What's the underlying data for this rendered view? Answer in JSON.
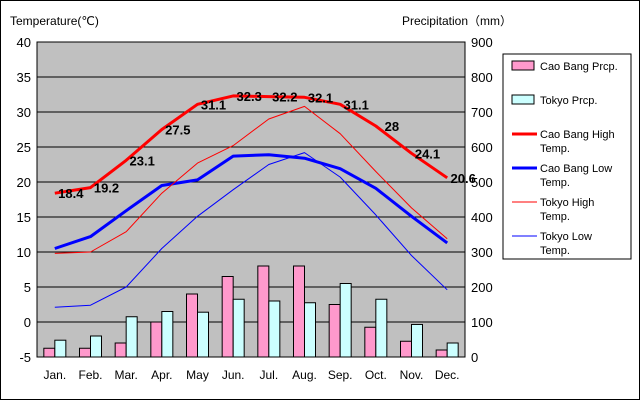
{
  "chart_data": {
    "type": "bar+line",
    "categories": [
      "Jan.",
      "Feb.",
      "Mar.",
      "Apr.",
      "May",
      "Jun.",
      "Jul.",
      "Aug.",
      "Sep.",
      "Oct.",
      "Nov.",
      "Dec."
    ],
    "left_axis": {
      "label": "Temperature(℃)",
      "min": -5,
      "max": 40,
      "step": 5
    },
    "right_axis": {
      "label": "Precipitation（mm）",
      "min": 0,
      "max": 900,
      "step": 100
    },
    "plot_background": "#c0c0c0",
    "bar_series": [
      {
        "name": "Cao Bang Prcp.",
        "color": "#ff99cc",
        "values": [
          25,
          25,
          40,
          100,
          180,
          230,
          260,
          260,
          150,
          85,
          45,
          20
        ]
      },
      {
        "name": "Tokyo Prcp.",
        "color": "#ccffff",
        "values": [
          48,
          60,
          115,
          130,
          128,
          165,
          160,
          155,
          210,
          165,
          93,
          40
        ]
      }
    ],
    "line_series": [
      {
        "name": "Cao Bang High Temp.",
        "color": "#ff0000",
        "width": 3,
        "values": [
          18.4,
          19.2,
          23.1,
          27.5,
          31.1,
          32.3,
          32.2,
          32.1,
          31.1,
          28,
          24.1,
          20.6
        ],
        "labels": [
          "18.4",
          "19.2",
          "23.1",
          "27.5",
          "31.1",
          "32.3",
          "32.2",
          "32.1",
          "31.1",
          "28",
          "24.1",
          "20.6"
        ]
      },
      {
        "name": "Cao Bang Low Temp.",
        "color": "#0000ff",
        "width": 3,
        "values": [
          10.5,
          12.2,
          15.9,
          19.5,
          20.3,
          23.7,
          23.9,
          23.4,
          21.9,
          19.1,
          15.1,
          11.3
        ]
      },
      {
        "name": "Tokyo High Temp.",
        "color": "#ff0000",
        "width": 1,
        "values": [
          9.8,
          10,
          12.9,
          18.4,
          22.7,
          25.2,
          29,
          30.8,
          26.9,
          21.5,
          16.3,
          11.9
        ]
      },
      {
        "name": "Tokyo Low Temp.",
        "color": "#0000ff",
        "width": 1,
        "values": [
          2.1,
          2.4,
          5,
          10.5,
          15.1,
          18.9,
          22.5,
          24.2,
          20.7,
          15.3,
          9.5,
          4.6
        ]
      }
    ],
    "legend": [
      {
        "label": "Cao Bang Prcp.",
        "kind": "bar",
        "color": "#ff99cc"
      },
      {
        "label": "Tokyo Prcp.",
        "kind": "bar",
        "color": "#ccffff"
      },
      {
        "label": "Cao Bang High Temp.",
        "kind": "line",
        "color": "#ff0000",
        "width": 3
      },
      {
        "label": "Cao Bang Low Temp.",
        "kind": "line",
        "color": "#0000ff",
        "width": 3
      },
      {
        "label": "Tokyo High Temp.",
        "kind": "line",
        "color": "#ff0000",
        "width": 1
      },
      {
        "label": "Tokyo Low Temp.",
        "kind": "line",
        "color": "#0000ff",
        "width": 1
      }
    ],
    "legend_position": "right"
  }
}
